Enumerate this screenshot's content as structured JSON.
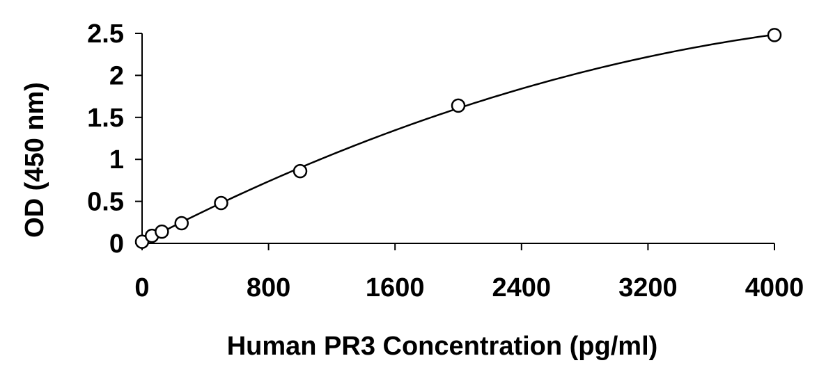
{
  "chart_data": {
    "type": "scatter",
    "title": "",
    "xlabel": "Human PR3 Concentration (pg/ml)",
    "ylabel": "OD (450 nm)",
    "xlim": [
      0,
      4000
    ],
    "ylim": [
      0,
      2.5
    ],
    "x_ticks": [
      "0",
      "800",
      "1600",
      "2400",
      "3200",
      "4000"
    ],
    "y_ticks": [
      "0",
      "0.5",
      "1",
      "1.5",
      "2",
      "2.5"
    ],
    "grid": false,
    "legend": "none",
    "series": [
      {
        "marker": "open-circle",
        "line": "smooth fitted curve",
        "x": [
          0,
          62.5,
          125,
          250,
          500,
          1000,
          2000,
          4000
        ],
        "y": [
          0.02,
          0.09,
          0.14,
          0.24,
          0.48,
          0.86,
          1.64,
          2.48
        ]
      }
    ],
    "colors": {
      "line": "#000000",
      "marker_fill": "#ffffff"
    }
  }
}
